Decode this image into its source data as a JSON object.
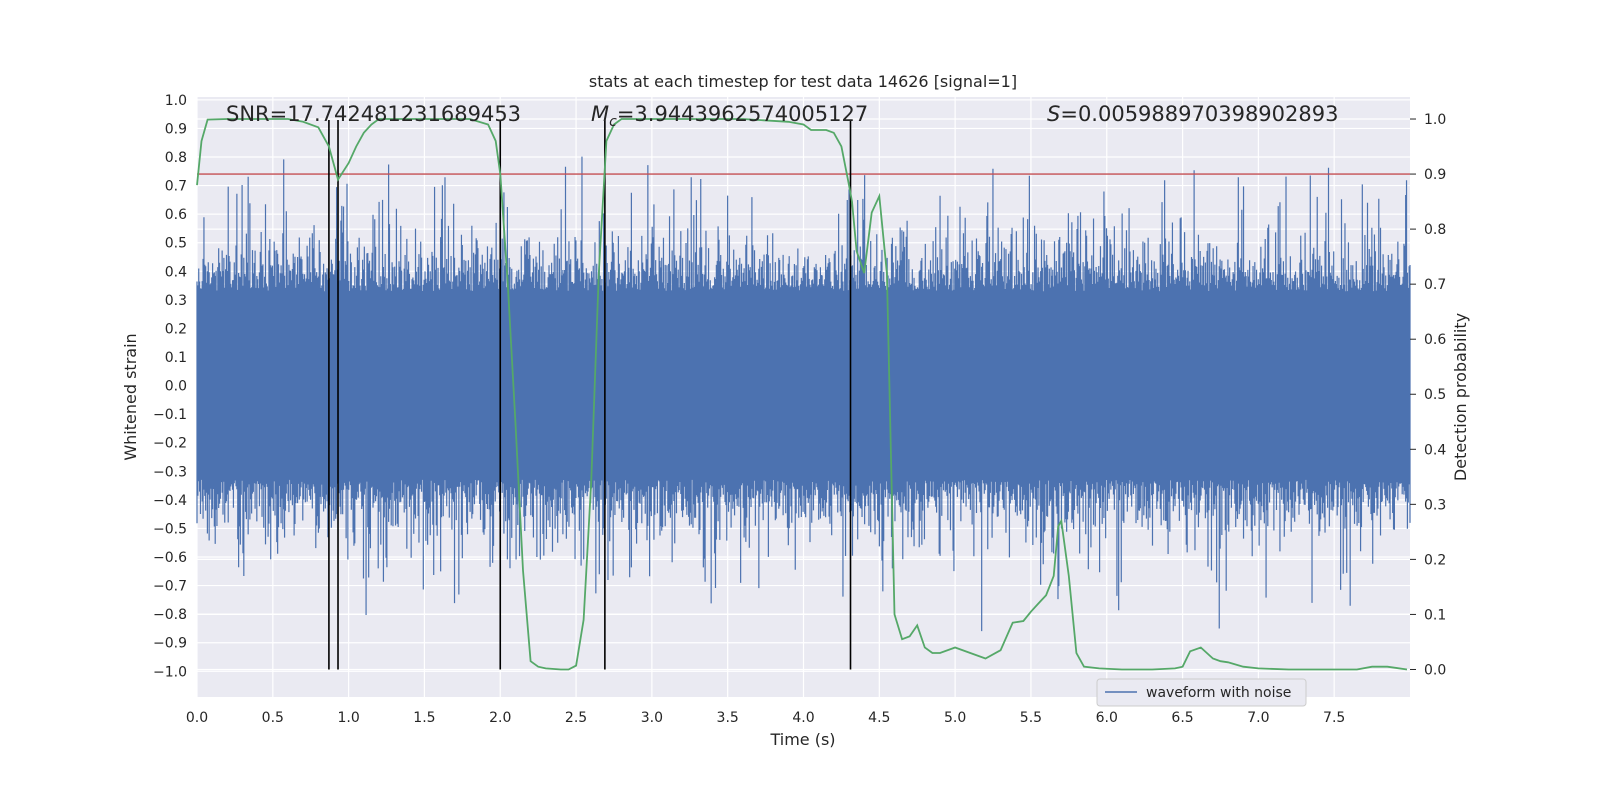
{
  "chart_data": {
    "type": "line",
    "title": "stats at each timestep for test data 14626 [signal=1]",
    "xlabel": "Time (s)",
    "ylabel_left": "Whitened strain",
    "ylabel_right": "Detection probability",
    "xlim": [
      0.0,
      8.0
    ],
    "ylim_left": [
      -1.09,
      1.01
    ],
    "ylim_right": [
      -0.05,
      1.04
    ],
    "x_ticks": [
      "0.0",
      "0.5",
      "1.0",
      "1.5",
      "2.0",
      "2.5",
      "3.0",
      "3.5",
      "4.0",
      "4.5",
      "5.0",
      "5.5",
      "6.0",
      "6.5",
      "7.0",
      "7.5"
    ],
    "y_left_ticks": [
      "1.0",
      "0.9",
      "0.8",
      "0.7",
      "0.6",
      "0.5",
      "0.4",
      "0.3",
      "0.2",
      "0.1",
      "0.0",
      "-0.1",
      "-0.2",
      "-0.3",
      "-0.4",
      "-0.5",
      "-0.6",
      "-0.7",
      "-0.8",
      "-0.9",
      "-1.0"
    ],
    "y_right_ticks": [
      "1.0",
      "0.9",
      "0.8",
      "0.7",
      "0.6",
      "0.5",
      "0.4",
      "0.3",
      "0.2",
      "0.1",
      "0.0"
    ],
    "annotations": {
      "snr": "SNR=17.742481231689453",
      "mc_symbol": "M",
      "mc_sub": "c",
      "mc_value": "=3.9443962574005127",
      "s_symbol": "S",
      "s_value": "=0.005988970398902893"
    },
    "threshold": 0.9,
    "vertical_lines": [
      0.87,
      0.93,
      2.0,
      2.69,
      4.31
    ],
    "waveform": {
      "name": "waveform with noise",
      "description": "whitened noisy strain, dense oscillation mostly within ±0.5 with spikes toward ±1.0",
      "samples": 1400,
      "approx_extent": [
        -1.0,
        0.88
      ]
    },
    "detection_probability": {
      "x": [
        0.0,
        0.03,
        0.07,
        0.2,
        0.4,
        0.6,
        0.7,
        0.8,
        0.87,
        0.93,
        1.0,
        1.05,
        1.1,
        1.15,
        1.2,
        1.25,
        1.3,
        1.4,
        1.6,
        1.8,
        1.92,
        1.97,
        2.0,
        2.05,
        2.1,
        2.15,
        2.2,
        2.25,
        2.3,
        2.4,
        2.45,
        2.5,
        2.55,
        2.6,
        2.65,
        2.7,
        2.75,
        2.8,
        3.0,
        3.3,
        3.6,
        3.9,
        4.0,
        4.05,
        4.15,
        4.2,
        4.25,
        4.3,
        4.32,
        4.35,
        4.4,
        4.45,
        4.5,
        4.55,
        4.6,
        4.65,
        4.7,
        4.75,
        4.8,
        4.85,
        4.9,
        5.0,
        5.1,
        5.2,
        5.3,
        5.38,
        5.45,
        5.5,
        5.55,
        5.6,
        5.65,
        5.68,
        5.7,
        5.75,
        5.8,
        5.85,
        5.95,
        6.1,
        6.3,
        6.45,
        6.5,
        6.55,
        6.62,
        6.7,
        6.75,
        6.8,
        6.9,
        7.0,
        7.2,
        7.5,
        7.6,
        7.65,
        7.75,
        7.85,
        7.98
      ],
      "y": [
        0.88,
        0.96,
        0.999,
        1.0,
        1.0,
        1.0,
        0.995,
        0.985,
        0.95,
        0.89,
        0.92,
        0.95,
        0.975,
        0.99,
        1.0,
        1.0,
        1.0,
        1.0,
        1.0,
        1.0,
        0.99,
        0.96,
        0.9,
        0.7,
        0.45,
        0.18,
        0.015,
        0.005,
        0.002,
        0.0,
        0.0,
        0.007,
        0.09,
        0.34,
        0.72,
        0.96,
        0.99,
        1.0,
        1.0,
        1.0,
        1.0,
        0.995,
        0.99,
        0.98,
        0.98,
        0.975,
        0.95,
        0.88,
        0.85,
        0.76,
        0.72,
        0.83,
        0.86,
        0.72,
        0.1,
        0.055,
        0.06,
        0.08,
        0.04,
        0.03,
        0.03,
        0.04,
        0.03,
        0.02,
        0.035,
        0.085,
        0.088,
        0.105,
        0.12,
        0.135,
        0.17,
        0.26,
        0.27,
        0.17,
        0.03,
        0.005,
        0.002,
        0.0,
        0.0,
        0.002,
        0.005,
        0.033,
        0.04,
        0.02,
        0.015,
        0.013,
        0.005,
        0.002,
        0.0,
        0.0,
        0.0,
        0.0,
        0.005,
        0.005,
        0.0
      ]
    },
    "legend": {
      "label": "waveform with noise",
      "placement": "lower-right"
    },
    "colors": {
      "background": "#eaeaf2",
      "grid": "#ffffff",
      "waveform": "#4c72b0",
      "probability": "#55a868",
      "threshold": "#c44e52",
      "vlines": "#000000"
    },
    "grid": true
  }
}
